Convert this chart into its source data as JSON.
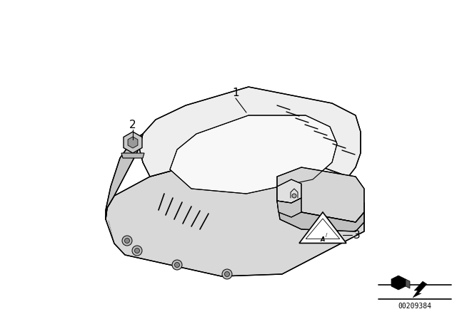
{
  "background_color": "#ffffff",
  "line_color": "#000000",
  "fig_width": 6.4,
  "fig_height": 4.48,
  "dpi": 100,
  "catalog_number": "00209384",
  "line_width": 0.9
}
